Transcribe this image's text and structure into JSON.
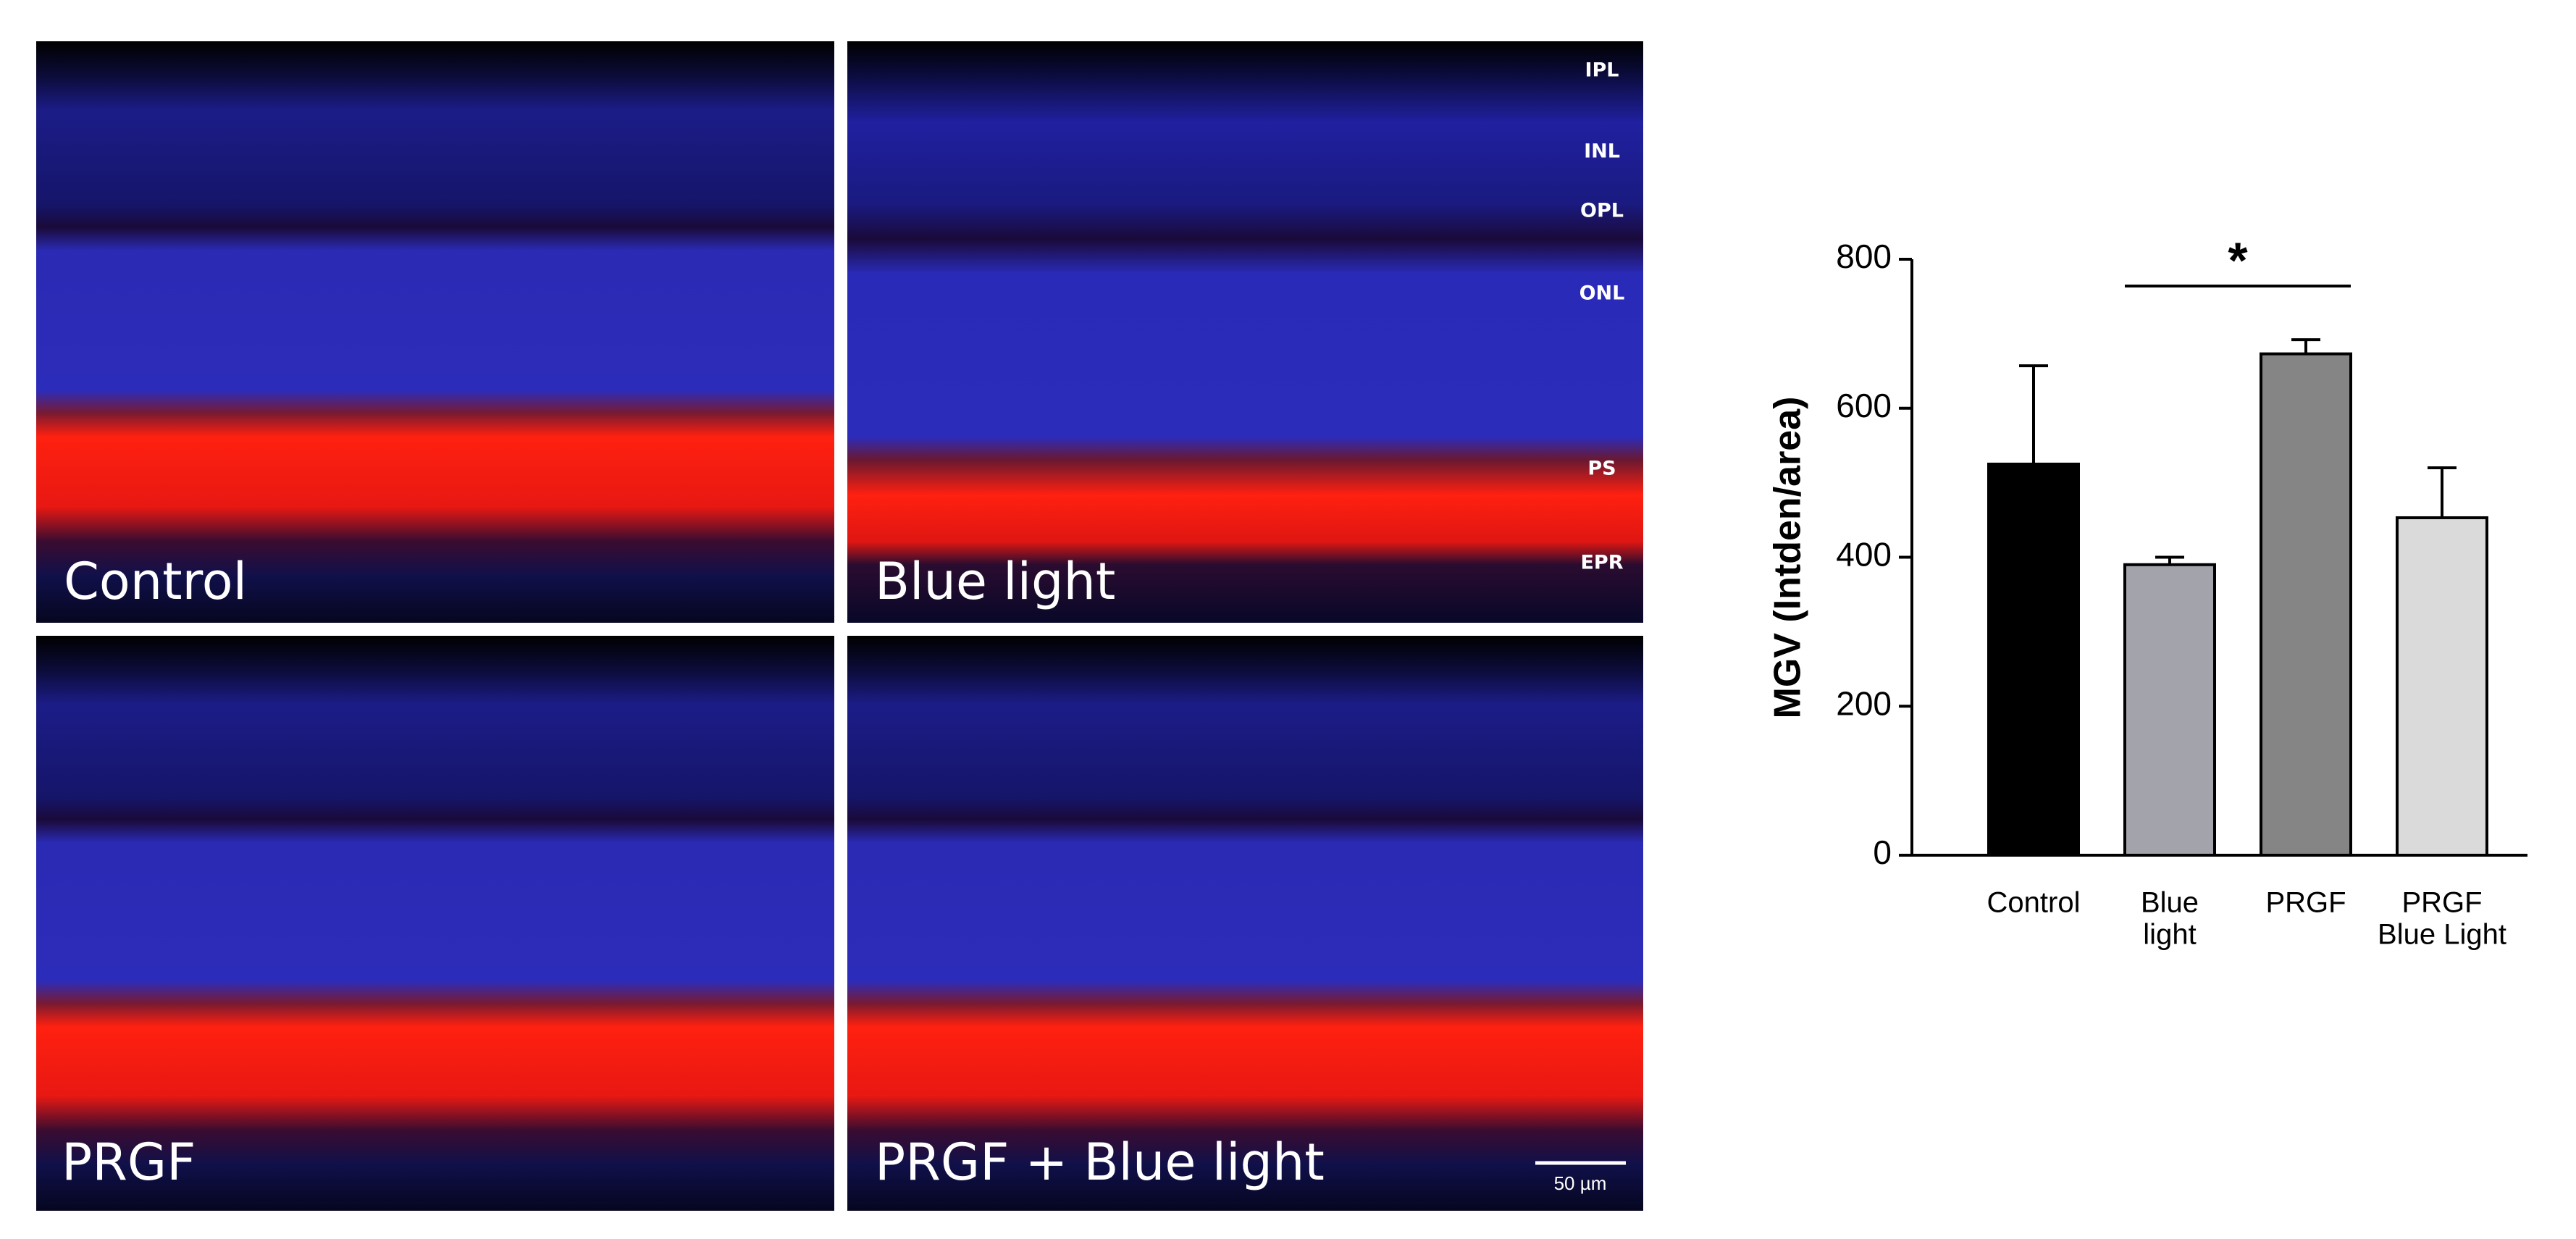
{
  "panels": [
    {
      "label": "Control"
    },
    {
      "label": "Blue light"
    },
    {
      "label": "PRGF"
    },
    {
      "label": "PRGF + Blue light"
    }
  ],
  "layers": [
    "IPL",
    "INL",
    "OPL",
    "ONL",
    "PS",
    "EPR"
  ],
  "scale_bar": "50 µm",
  "chart_data": {
    "type": "bar",
    "categories": [
      [
        "Control"
      ],
      [
        "Blue",
        "light"
      ],
      [
        "PRGF"
      ],
      [
        "PRGF",
        "Blue Light"
      ]
    ],
    "values": [
      525,
      390,
      673,
      453
    ],
    "errors": [
      132,
      10,
      19,
      67
    ],
    "colors": [
      "#000000",
      "#a3a3ab",
      "#858585",
      "#dadada"
    ],
    "y_label": "MGV (Intden/area)",
    "ylim": [
      0,
      800
    ],
    "yticks": [
      0,
      200,
      400,
      600,
      800
    ],
    "significance": "*"
  }
}
